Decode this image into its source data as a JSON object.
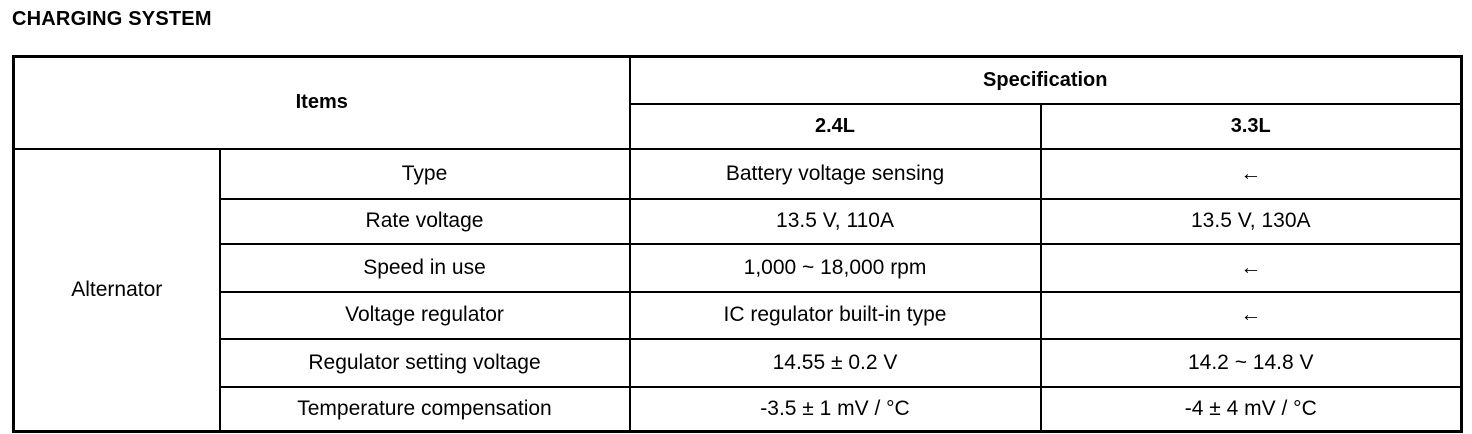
{
  "title": "CHARGING SYSTEM",
  "header": {
    "items": "Items",
    "specification": "Specification",
    "variants": [
      "2.4L",
      "3.3L"
    ]
  },
  "group": "Alternator",
  "rows": [
    {
      "item": "Type",
      "v24": "Battery voltage sensing",
      "v33": "←"
    },
    {
      "item": "Rate voltage",
      "v24": "13.5 V, 110A",
      "v33": "13.5 V, 130A"
    },
    {
      "item": "Speed in use",
      "v24": "1,000 ~ 18,000 rpm",
      "v33": "←"
    },
    {
      "item": "Voltage regulator",
      "v24": "IC regulator built-in type",
      "v33": "←"
    },
    {
      "item": "Regulator setting voltage",
      "v24": "14.55 ± 0.2 V",
      "v33": "14.2 ~ 14.8 V"
    },
    {
      "item": "Temperature compensation",
      "v24": "-3.5 ± 1 mV / °C",
      "v33": "-4 ± 4 mV / °C"
    }
  ]
}
